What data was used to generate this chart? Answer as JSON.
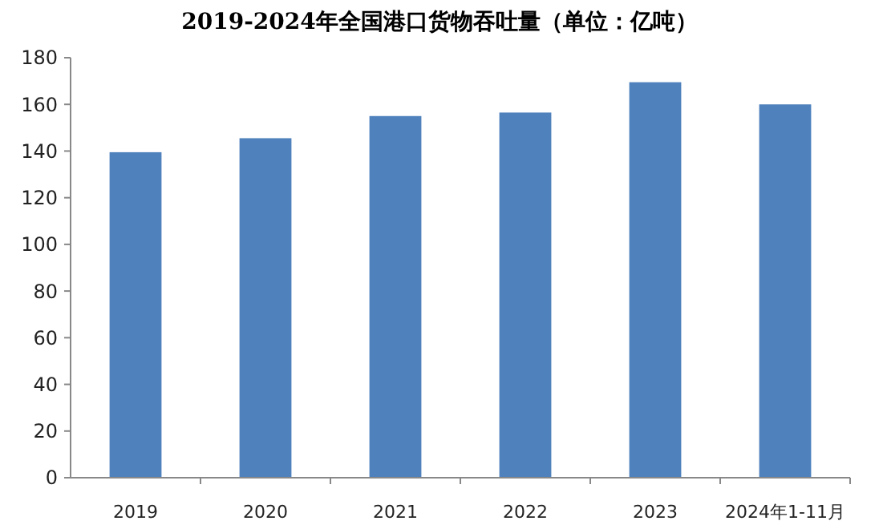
{
  "chart_data": {
    "type": "bar",
    "title": "2019-2024年全国港口货物吞吐量（单位：亿吨）",
    "categories": [
      "2019",
      "2020",
      "2021",
      "2022",
      "2023",
      "2024年1-11月"
    ],
    "values": [
      139.5,
      145.5,
      155,
      156.5,
      169.5,
      160
    ],
    "color": "#4f81bd",
    "ylim": [
      0,
      180
    ],
    "yticks": [
      0,
      20,
      40,
      60,
      80,
      100,
      120,
      140,
      160,
      180
    ],
    "grid": false
  }
}
